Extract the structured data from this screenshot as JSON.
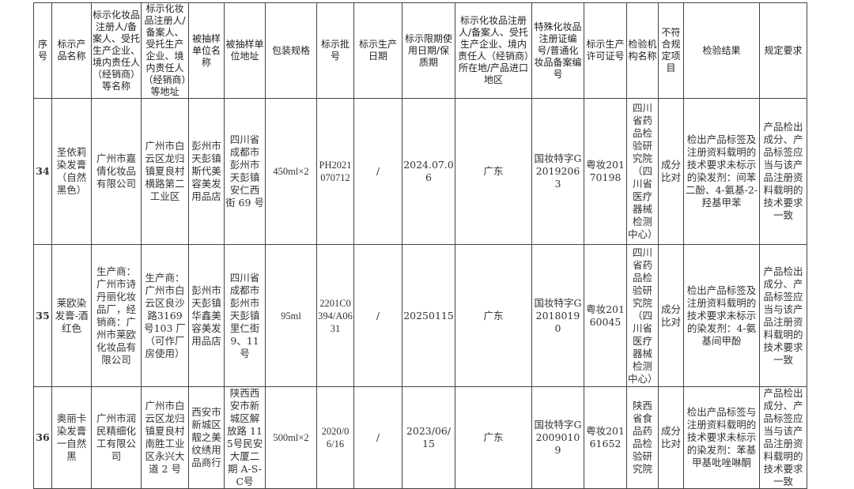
{
  "headers": [
    "序号",
    "标示产品名称",
    "标示化妆品注册人/备案人、受托生产企业、境内责任人（经销商）等名称",
    "标示化妆品注册人/备案人、受托生产企业、境内责任人（经销商）等地址",
    "被抽样单位名称",
    "被抽样单位地址",
    "包装规格",
    "标示批号",
    "标示生产日期",
    "标示限期使用日期/保质期",
    "标示化妆品注册人/备案人、受托生产企业、境内责任人（经销商）所在地/产品进口地区",
    "特殊化妆品注册证编号/普通化妆品备案编号",
    "标示生产许可证号",
    "检验机构名称",
    "不符合规定项目",
    "检验结果",
    "规定要求"
  ],
  "rows": [
    [
      "34",
      "圣依莉染发膏（自然黑色）",
      "广州市嘉倩化妆品有限公司",
      "广州市白云区龙归镇夏良村横路第二工业区",
      "彭州市天彭镇斯代美容美发用品店",
      "四川省成都市彭州市天彭镇安仁西街 69 号",
      "450ml×2",
      "PH2021070712",
      "/",
      "2024.07.06",
      "广东",
      "国妆特字G20192063",
      "粤妆20170198",
      "四川省药品检验研究院（四川省医疗器械检测中心）",
      "成分比对",
      "检出产品标签及注册资料载明的技术要求未标示的染发剂：间苯二酚、4-氨基-2-羟基甲苯",
      "产品检出成分、产品标签应当与该产品注册资料载明的技术要求一致"
    ],
    [
      "35",
      "莱欧染发膏-酒红色",
      "生产商：广州市诗丹丽化妆品厂，经销商：广州市莱欧化妆品有限公司",
      "生产商：广州市白云区良沙路3169 号103 厂（可作厂房使用）",
      "彭州市天彭镇华鑫美容美发用品店",
      "四川省成都市彭州市天彭镇里仁街9、11 号",
      "95ml",
      "2201C0394/A0631",
      "/",
      "20250115",
      "广东",
      "国妆特字G20180190",
      "粤妆20160045",
      "四川省药品检验研究院（四川省医疗器械检测中心）",
      "成分比对",
      "检出产品标签及注册资料载明的技术要求未标示的染发剂：4-氨基间甲酚",
      "产品检出成分、产品标签应当与该产品注册资料载明的技术要求一致"
    ],
    [
      "36",
      "奥丽卡染发膏一自然黑",
      "广州市润民精细化工有限公司",
      "广州市白云区龙归镇夏良村南胜工业区永兴大道 2 号",
      "西安市新城区靓之美纹绣用品商行",
      "陕西西安市新城区解放路 115号民安大厦二期 A-S-C号",
      "500ml×2",
      "2020/06/16",
      "/",
      "2023/06/15",
      "广东",
      "国妆特字G20090109",
      "粤妆20161652",
      "陕西省食品药品检验研究院",
      "成分比对",
      "检出产品标签与注册资料载明的技术要求未标示的染发剂：苯基甲基吡唑啉酮",
      "产品检出成分、产品标签应当与该产品注册资料载明的技术要求一致"
    ]
  ]
}
